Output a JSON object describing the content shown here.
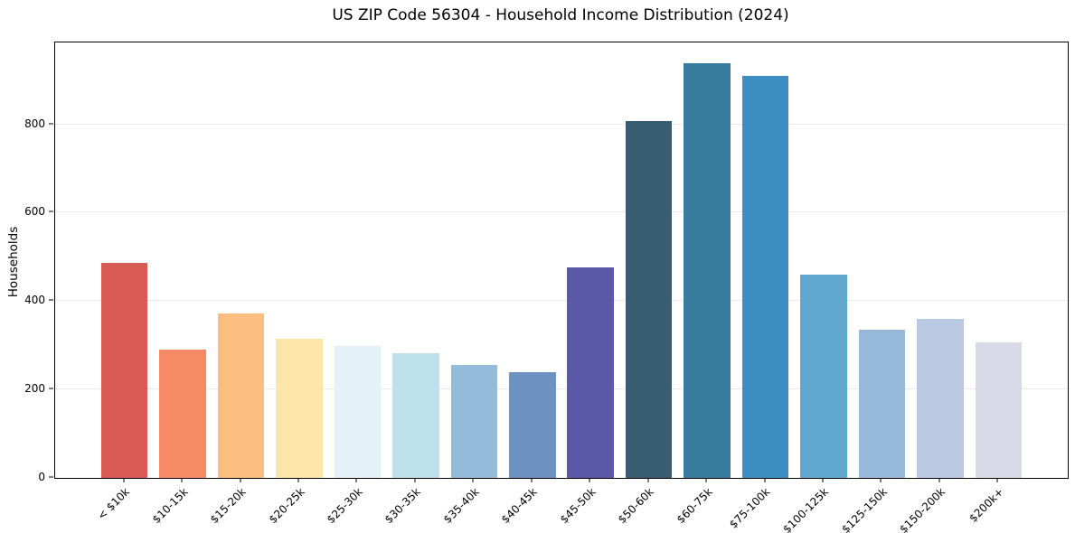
{
  "figure": {
    "background_color": "#ffffff"
  },
  "chart_data": {
    "type": "bar",
    "title": "US ZIP Code 56304 - Household Income Distribution (2024)",
    "xlabel": "",
    "ylabel": "Households",
    "categories": [
      "< $10k",
      "$10-15k",
      "$15-20k",
      "$20-25k",
      "$25-30k",
      "$30-35k",
      "$35-40k",
      "$40-45k",
      "$45-50k",
      "$50-60k",
      "$60-75k",
      "$75-100k",
      "$100-125k",
      "$125-150k",
      "$150-200k",
      "$200k+"
    ],
    "values": [
      487,
      290,
      371,
      315,
      298,
      282,
      256,
      240,
      476,
      807,
      938,
      910,
      459,
      335,
      360,
      307
    ],
    "bar_colors": [
      "#d85b54",
      "#f58a65",
      "#fcbd80",
      "#fde4a8",
      "#e4f1f6",
      "#bce0ec",
      "#93bcdb",
      "#6d92c1",
      "#5b58a9",
      "#385d71",
      "#377b9e",
      "#3c8dc2",
      "#60a8cd",
      "#96b9d9",
      "#bac9e2",
      "#d8dae8"
    ],
    "ylim": [
      0,
      985
    ],
    "yticks": [
      0,
      200,
      400,
      600,
      800
    ],
    "grid": "horizontal-only",
    "grid_color": "#e9e9e9",
    "axis_color": "#000000",
    "text_color": "#000000",
    "legend_position": "none",
    "x_tick_rotation_deg": 45
  }
}
